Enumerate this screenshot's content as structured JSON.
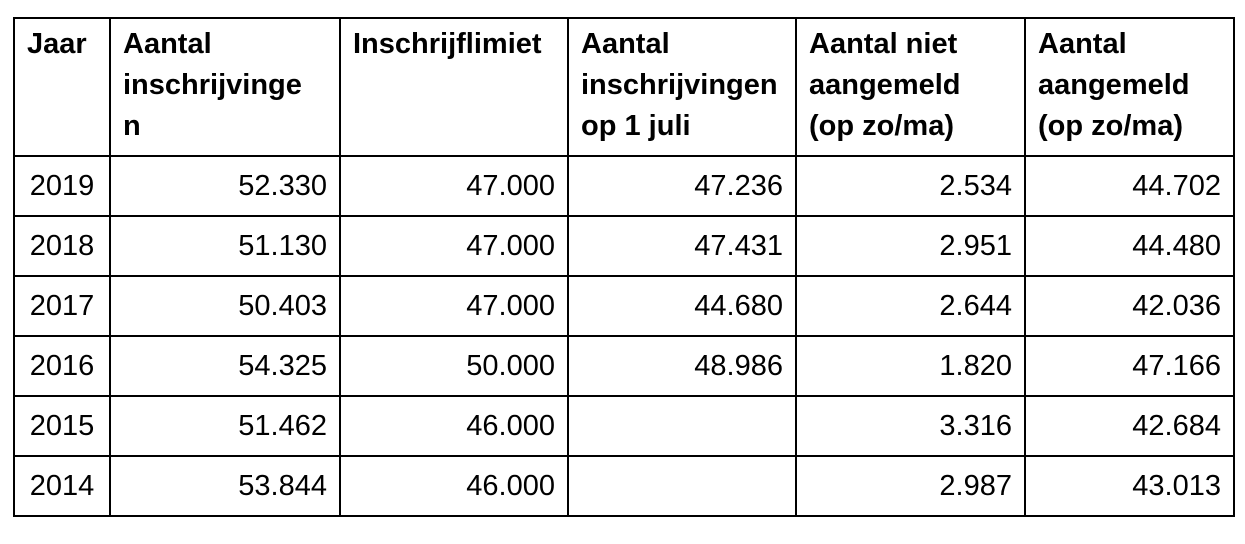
{
  "colors": {
    "border": "#000000",
    "text": "#000000",
    "background": "#ffffff"
  },
  "table": {
    "columns": [
      {
        "id": "jaar",
        "label": "Jaar"
      },
      {
        "id": "aantal-inschrijvingen",
        "label": "Aantal\ninschrijvinge\nn"
      },
      {
        "id": "inschrijflimiet",
        "label": "Inschrijflimiet"
      },
      {
        "id": "aantal-inschrijvingen-op-1-juli",
        "label": "Aantal\ninschrijvingen\nop 1 juli"
      },
      {
        "id": "aantal-niet-aangemeld",
        "label": "Aantal niet\naangemeld\n(op zo/ma)"
      },
      {
        "id": "aantal-aangemeld",
        "label": "Aantal\naangemeld\n(op zo/ma)"
      }
    ],
    "rows": [
      [
        "2019",
        "52.330",
        "47.000",
        "47.236",
        "2.534",
        "44.702"
      ],
      [
        "2018",
        "51.130",
        "47.000",
        "47.431",
        "2.951",
        "44.480"
      ],
      [
        "2017",
        "50.403",
        "47.000",
        "44.680",
        "2.644",
        "42.036"
      ],
      [
        "2016",
        "54.325",
        "50.000",
        "48.986",
        "1.820",
        "47.166"
      ],
      [
        "2015",
        "51.462",
        "46.000",
        "",
        "3.316",
        "42.684"
      ],
      [
        "2014",
        "53.844",
        "46.000",
        "",
        "2.987",
        "43.013"
      ]
    ]
  }
}
